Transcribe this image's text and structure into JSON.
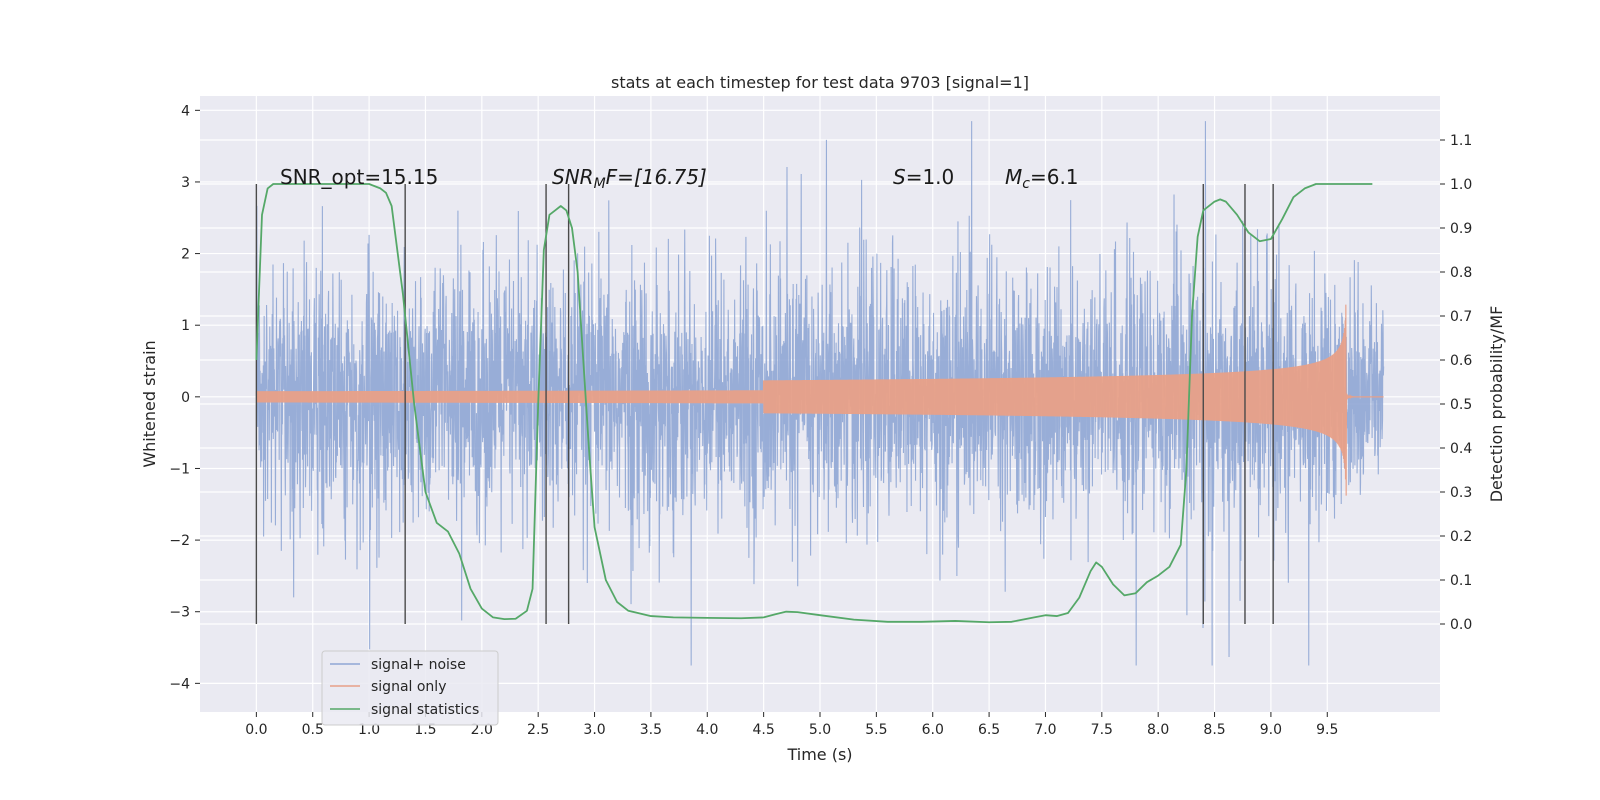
{
  "chart_data": {
    "type": "line",
    "title": "stats at each timestep for test data 9703 [signal=1]",
    "xlabel": "Time (s)",
    "ylabel_left": "Whitened strain",
    "ylabel_right": "Detection probability/MF",
    "xlim": [
      -0.5,
      10.5
    ],
    "ylim_left": [
      -4.4,
      4.2
    ],
    "ylim_right": [
      -0.2,
      1.2
    ],
    "x_ticks": [
      "0.0",
      "0.5",
      "1.0",
      "1.5",
      "2.0",
      "2.5",
      "3.0",
      "3.5",
      "4.0",
      "4.5",
      "5.0",
      "5.5",
      "6.0",
      "6.5",
      "7.0",
      "7.5",
      "8.0",
      "8.5",
      "9.0",
      "9.5"
    ],
    "y_ticks_left": [
      "4",
      "3",
      "2",
      "1",
      "0",
      "−1",
      "−2",
      "−3",
      "−4"
    ],
    "y_ticks_right": [
      "1.1",
      "1.0",
      "0.9",
      "0.8",
      "0.7",
      "0.6",
      "0.5",
      "0.4",
      "0.3",
      "0.2",
      "0.1",
      "0.0"
    ],
    "grid": true,
    "legend_position": "lower-left",
    "annotations": {
      "snr_opt": "SNR_opt=15.15",
      "snr_mf_main": "SNR",
      "snr_mf_sub": "M",
      "snr_mf_rest": "F=[16.75]",
      "s_var": "S",
      "s_val": "=1.0",
      "mc_var": "M",
      "mc_sub": "c",
      "mc_val": "=6.1"
    },
    "vertical_lines_x": [
      0.0,
      1.32,
      2.57,
      2.77,
      8.4,
      8.77,
      9.02
    ],
    "series": [
      {
        "name": "signal+ noise",
        "color": "#8fa6d4",
        "envelope_x": [
          0.0,
          9.5,
          10.0
        ],
        "envelope_max": [
          3.0,
          3.0,
          2.4
        ],
        "envelope_min": [
          -3.0,
          -3.0,
          -2.2
        ]
      },
      {
        "name": "signal only",
        "color": "#e8a088",
        "chirp_merger_time": 9.67,
        "chirp_peak_amplitude": 1.5,
        "chirp_onset_time": 4.5
      },
      {
        "name": "signal statistics",
        "color": "#55a868",
        "x": [
          0.0,
          0.05,
          0.1,
          0.15,
          0.2,
          0.3,
          0.4,
          0.5,
          0.6,
          0.7,
          0.8,
          0.9,
          1.0,
          1.1,
          1.15,
          1.2,
          1.3,
          1.4,
          1.5,
          1.6,
          1.7,
          1.8,
          1.9,
          2.0,
          2.1,
          2.2,
          2.3,
          2.4,
          2.45,
          2.5,
          2.55,
          2.6,
          2.65,
          2.7,
          2.75,
          2.8,
          2.85,
          2.9,
          2.95,
          3.0,
          3.1,
          3.2,
          3.3,
          3.5,
          3.7,
          4.0,
          4.3,
          4.5,
          4.6,
          4.7,
          4.8,
          5.0,
          5.3,
          5.6,
          5.9,
          6.2,
          6.5,
          6.7,
          6.9,
          7.0,
          7.1,
          7.2,
          7.3,
          7.4,
          7.45,
          7.5,
          7.6,
          7.7,
          7.8,
          7.9,
          8.0,
          8.1,
          8.2,
          8.25,
          8.3,
          8.35,
          8.4,
          8.5,
          8.55,
          8.6,
          8.7,
          8.8,
          8.9,
          9.0,
          9.1,
          9.2,
          9.3,
          9.4,
          9.5,
          9.7,
          9.9
        ],
        "y": [
          0.6,
          0.93,
          0.99,
          1.0,
          1.0,
          1.0,
          1.0,
          1.0,
          1.0,
          1.0,
          1.0,
          1.0,
          1.0,
          0.99,
          0.98,
          0.95,
          0.75,
          0.5,
          0.3,
          0.23,
          0.21,
          0.16,
          0.08,
          0.035,
          0.015,
          0.011,
          0.012,
          0.03,
          0.08,
          0.5,
          0.85,
          0.93,
          0.94,
          0.95,
          0.94,
          0.9,
          0.8,
          0.6,
          0.4,
          0.22,
          0.1,
          0.05,
          0.03,
          0.018,
          0.015,
          0.014,
          0.013,
          0.015,
          0.022,
          0.028,
          0.027,
          0.02,
          0.01,
          0.005,
          0.005,
          0.007,
          0.004,
          0.005,
          0.015,
          0.02,
          0.018,
          0.025,
          0.06,
          0.12,
          0.14,
          0.13,
          0.09,
          0.065,
          0.07,
          0.095,
          0.11,
          0.13,
          0.18,
          0.35,
          0.7,
          0.88,
          0.94,
          0.96,
          0.965,
          0.96,
          0.93,
          0.89,
          0.87,
          0.875,
          0.92,
          0.97,
          0.99,
          1.0,
          1.0,
          1.0,
          1.0
        ]
      }
    ]
  }
}
